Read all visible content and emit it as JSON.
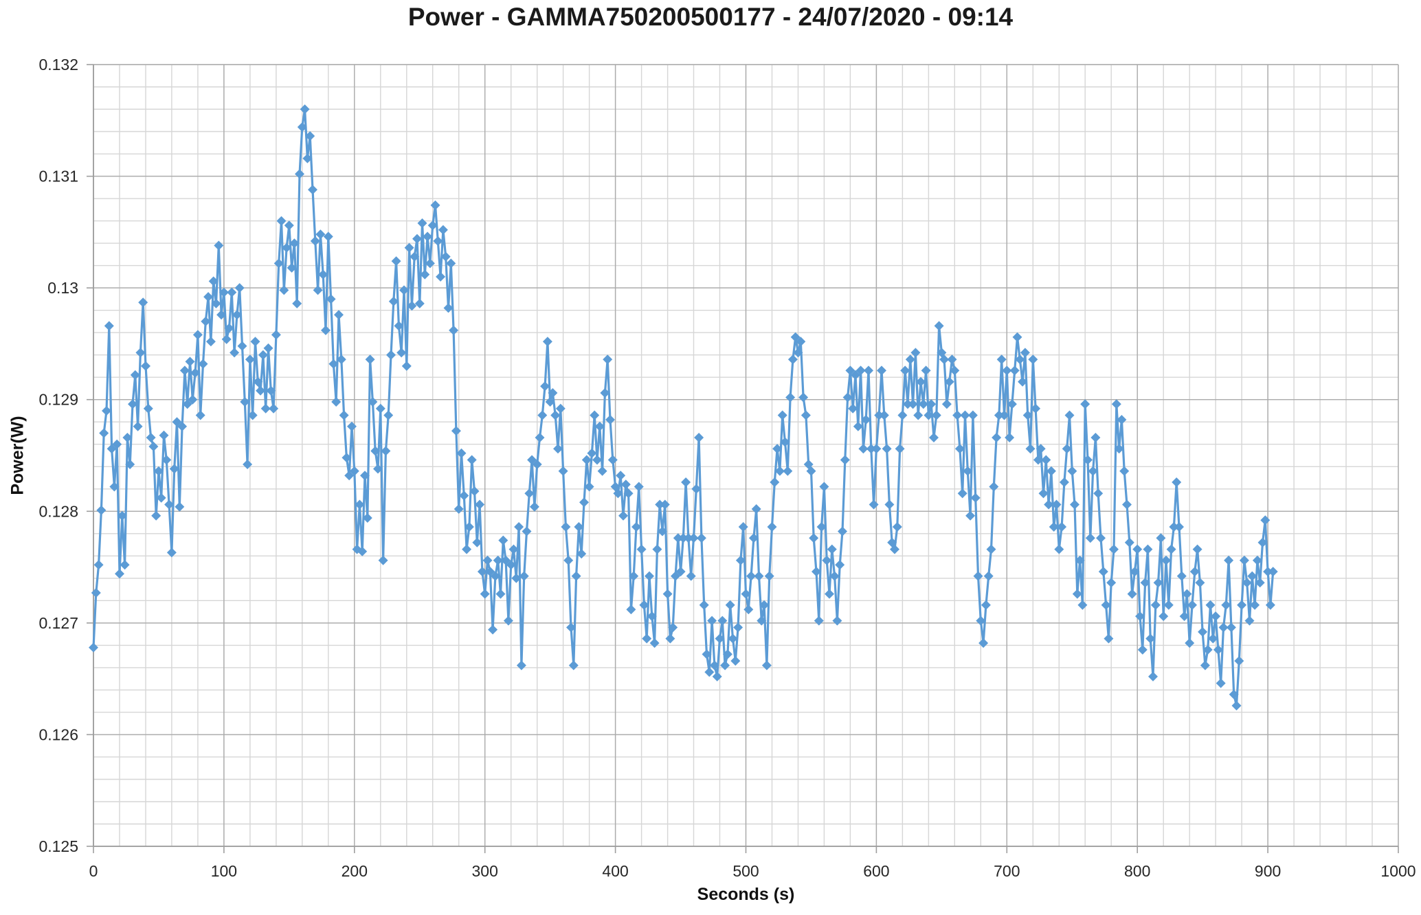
{
  "chart_data": {
    "type": "line",
    "title": "Power - GAMMA750200500177 - 24/07/2020 - 09:14",
    "xlabel": "Seconds (s)",
    "ylabel": "Power(W)",
    "xlim": [
      0,
      1000
    ],
    "ylim": [
      0.125,
      0.132
    ],
    "x_major": 100,
    "x_minor": 20,
    "y_major": 0.001,
    "y_minor": 0.0002,
    "x_ticks": [
      "0",
      "100",
      "200",
      "300",
      "400",
      "500",
      "600",
      "700",
      "800",
      "900",
      "1000"
    ],
    "y_ticks": [
      "0.125",
      "0.126",
      "0.127",
      "0.128",
      "0.129",
      "0.13",
      "0.131",
      "0.132"
    ],
    "grid": "major+minor",
    "legend_position": "none",
    "marker": "diamond",
    "colors": {
      "series": "#5B9BD5",
      "grid_minor": "#D6D6D6",
      "grid_major": "#ABABAB",
      "axis": "#9E9E9E",
      "tick_text": "#262626",
      "title_text": "#1A1A1A"
    },
    "series": [
      {
        "name": "Power",
        "x_start": 0,
        "x_step": 2,
        "values": [
          0.12678,
          0.12727,
          0.12752,
          0.12801,
          0.1287,
          0.1289,
          0.12966,
          0.12856,
          0.12822,
          0.1286,
          0.12744,
          0.12796,
          0.12752,
          0.12866,
          0.12842,
          0.12896,
          0.12922,
          0.12876,
          0.12942,
          0.12987,
          0.1293,
          0.12892,
          0.12866,
          0.12858,
          0.12796,
          0.12836,
          0.12812,
          0.12868,
          0.12846,
          0.12806,
          0.12763,
          0.12838,
          0.1288,
          0.12804,
          0.12876,
          0.12926,
          0.12896,
          0.12934,
          0.129,
          0.12924,
          0.12958,
          0.12886,
          0.12932,
          0.1297,
          0.12992,
          0.12952,
          0.13006,
          0.12986,
          0.13038,
          0.12976,
          0.12996,
          0.12954,
          0.12964,
          0.12996,
          0.12942,
          0.12976,
          0.13,
          0.12948,
          0.12898,
          0.12842,
          0.12936,
          0.12886,
          0.12952,
          0.12916,
          0.12908,
          0.1294,
          0.12892,
          0.12946,
          0.12908,
          0.12892,
          0.12958,
          0.13022,
          0.1306,
          0.12998,
          0.13036,
          0.13056,
          0.13018,
          0.1304,
          0.12986,
          0.13102,
          0.13144,
          0.1316,
          0.13116,
          0.13136,
          0.13088,
          0.13042,
          0.12998,
          0.13048,
          0.13012,
          0.12962,
          0.13046,
          0.1299,
          0.12932,
          0.12898,
          0.12976,
          0.12936,
          0.12886,
          0.12848,
          0.12832,
          0.12876,
          0.12836,
          0.12766,
          0.12806,
          0.12764,
          0.12832,
          0.12794,
          0.12936,
          0.12898,
          0.12854,
          0.12838,
          0.12892,
          0.12756,
          0.12854,
          0.12886,
          0.1294,
          0.12988,
          0.13024,
          0.12966,
          0.12942,
          0.12998,
          0.1293,
          0.13036,
          0.12984,
          0.13028,
          0.13044,
          0.12986,
          0.13058,
          0.13012,
          0.13046,
          0.13022,
          0.13056,
          0.13074,
          0.13042,
          0.1301,
          0.13052,
          0.13028,
          0.12982,
          0.13022,
          0.12962,
          0.12872,
          0.12802,
          0.12852,
          0.12814,
          0.12766,
          0.12786,
          0.12846,
          0.12818,
          0.12772,
          0.12806,
          0.12746,
          0.12726,
          0.12756,
          0.12746,
          0.12694,
          0.12742,
          0.12756,
          0.12726,
          0.12774,
          0.12756,
          0.12702,
          0.12752,
          0.12766,
          0.1274,
          0.12786,
          0.12662,
          0.12742,
          0.12782,
          0.12816,
          0.12846,
          0.12804,
          0.12842,
          0.12866,
          0.12886,
          0.12912,
          0.12952,
          0.12898,
          0.12906,
          0.12886,
          0.12856,
          0.12892,
          0.12836,
          0.12786,
          0.12756,
          0.12696,
          0.12662,
          0.12742,
          0.12786,
          0.12762,
          0.12808,
          0.12846,
          0.12822,
          0.12852,
          0.12886,
          0.12846,
          0.12876,
          0.12836,
          0.12906,
          0.12936,
          0.12882,
          0.12846,
          0.12822,
          0.12816,
          0.12832,
          0.12796,
          0.12824,
          0.12816,
          0.12712,
          0.12742,
          0.12786,
          0.12822,
          0.12766,
          0.12716,
          0.12686,
          0.12742,
          0.12706,
          0.12682,
          0.12766,
          0.12806,
          0.12782,
          0.12806,
          0.12726,
          0.12686,
          0.12696,
          0.12742,
          0.12776,
          0.12746,
          0.12776,
          0.12826,
          0.12776,
          0.12742,
          0.12776,
          0.1282,
          0.12866,
          0.12776,
          0.12716,
          0.12672,
          0.12656,
          0.12702,
          0.12662,
          0.12652,
          0.12686,
          0.12702,
          0.12662,
          0.12672,
          0.12716,
          0.12686,
          0.12666,
          0.12696,
          0.12756,
          0.12786,
          0.12726,
          0.12712,
          0.12742,
          0.12776,
          0.12802,
          0.12742,
          0.12702,
          0.12716,
          0.12662,
          0.12742,
          0.12786,
          0.12826,
          0.12856,
          0.12836,
          0.12886,
          0.12862,
          0.12836,
          0.12902,
          0.12936,
          0.12956,
          0.12942,
          0.12952,
          0.12902,
          0.12886,
          0.12842,
          0.12836,
          0.12776,
          0.12746,
          0.12702,
          0.12786,
          0.12822,
          0.12756,
          0.12726,
          0.12766,
          0.12742,
          0.12702,
          0.12752,
          0.12782,
          0.12846,
          0.12902,
          0.12926,
          0.12892,
          0.12922,
          0.12876,
          0.12926,
          0.12856,
          0.12882,
          0.12926,
          0.12856,
          0.12806,
          0.12856,
          0.12886,
          0.12926,
          0.12886,
          0.12856,
          0.12806,
          0.12772,
          0.12766,
          0.12786,
          0.12856,
          0.12886,
          0.12926,
          0.12896,
          0.12936,
          0.12896,
          0.12942,
          0.12886,
          0.12916,
          0.12896,
          0.12926,
          0.12886,
          0.12896,
          0.12866,
          0.12886,
          0.12966,
          0.12942,
          0.12936,
          0.12896,
          0.12916,
          0.12936,
          0.12926,
          0.12886,
          0.12856,
          0.12816,
          0.12886,
          0.12836,
          0.12796,
          0.12886,
          0.12812,
          0.12742,
          0.12702,
          0.12682,
          0.12716,
          0.12742,
          0.12766,
          0.12822,
          0.12866,
          0.12886,
          0.12936,
          0.12886,
          0.12926,
          0.12866,
          0.12896,
          0.12926,
          0.12956,
          0.12936,
          0.12916,
          0.12942,
          0.12886,
          0.12856,
          0.12936,
          0.12892,
          0.12846,
          0.12856,
          0.12816,
          0.12846,
          0.12806,
          0.12836,
          0.12786,
          0.12806,
          0.12766,
          0.12786,
          0.12826,
          0.12856,
          0.12886,
          0.12836,
          0.12806,
          0.12726,
          0.12756,
          0.12716,
          0.12896,
          0.12846,
          0.12776,
          0.12836,
          0.12866,
          0.12816,
          0.12776,
          0.12746,
          0.12716,
          0.12686,
          0.12736,
          0.12766,
          0.12896,
          0.12856,
          0.12882,
          0.12836,
          0.12806,
          0.12772,
          0.12726,
          0.12746,
          0.12766,
          0.12706,
          0.12676,
          0.12736,
          0.12766,
          0.12686,
          0.12652,
          0.12716,
          0.12736,
          0.12776,
          0.12706,
          0.12756,
          0.12716,
          0.12766,
          0.12786,
          0.12826,
          0.12786,
          0.12742,
          0.12706,
          0.12726,
          0.12682,
          0.12716,
          0.12746,
          0.12766,
          0.12736,
          0.12692,
          0.12662,
          0.12676,
          0.12716,
          0.12686,
          0.12706,
          0.12676,
          0.12646,
          0.12696,
          0.12716,
          0.12756,
          0.12696,
          0.12636,
          0.12626,
          0.12666,
          0.12716,
          0.12756,
          0.12736,
          0.12702,
          0.12742,
          0.12716,
          0.12756,
          0.12736,
          0.12772,
          0.12792,
          0.12746,
          0.12716,
          0.12746
        ]
      }
    ]
  }
}
